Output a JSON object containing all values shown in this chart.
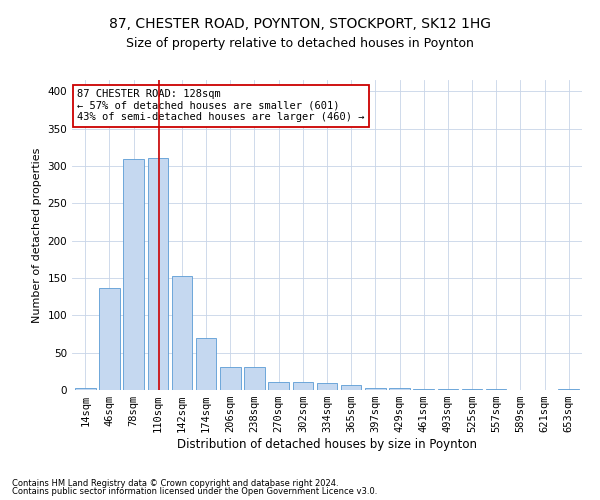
{
  "title1": "87, CHESTER ROAD, POYNTON, STOCKPORT, SK12 1HG",
  "title2": "Size of property relative to detached houses in Poynton",
  "xlabel": "Distribution of detached houses by size in Poynton",
  "ylabel": "Number of detached properties",
  "footnote1": "Contains HM Land Registry data © Crown copyright and database right 2024.",
  "footnote2": "Contains public sector information licensed under the Open Government Licence v3.0.",
  "categories": [
    "14sqm",
    "46sqm",
    "78sqm",
    "110sqm",
    "142sqm",
    "174sqm",
    "206sqm",
    "238sqm",
    "270sqm",
    "302sqm",
    "334sqm",
    "365sqm",
    "397sqm",
    "429sqm",
    "461sqm",
    "493sqm",
    "525sqm",
    "557sqm",
    "589sqm",
    "621sqm",
    "653sqm"
  ],
  "values": [
    3,
    136,
    309,
    311,
    153,
    70,
    31,
    31,
    11,
    11,
    9,
    7,
    3,
    3,
    2,
    1,
    1,
    1,
    0,
    0,
    2
  ],
  "bar_color": "#c5d8f0",
  "bar_edge_color": "#5b9bd5",
  "highlight_line_color": "#cc0000",
  "annotation_line1": "87 CHESTER ROAD: 128sqm",
  "annotation_line2": "← 57% of detached houses are smaller (601)",
  "annotation_line3": "43% of semi-detached houses are larger (460) →",
  "annotation_box_color": "#ffffff",
  "annotation_box_edge": "#cc0000",
  "ylim": [
    0,
    415
  ],
  "yticks": [
    0,
    50,
    100,
    150,
    200,
    250,
    300,
    350,
    400
  ],
  "background_color": "#ffffff",
  "grid_color": "#c8d4e8",
  "title1_fontsize": 10,
  "title2_fontsize": 9,
  "xlabel_fontsize": 8.5,
  "ylabel_fontsize": 8,
  "tick_fontsize": 7.5,
  "annotation_fontsize": 7.5,
  "footnote_fontsize": 6
}
